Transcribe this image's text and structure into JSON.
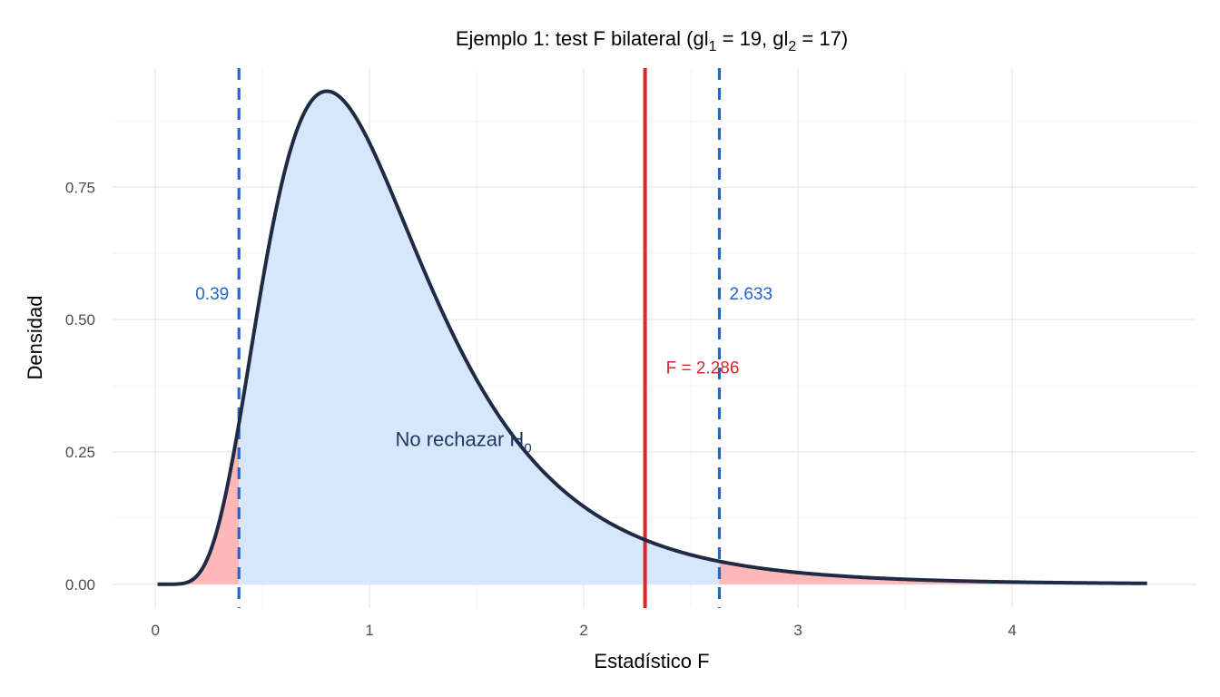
{
  "chart_data": {
    "type": "area",
    "title": {
      "prefix": "Ejemplo 1: test F bilateral (gl",
      "sub1": "1",
      "mid": " = 19, gl",
      "sub2": "2",
      "suffix": " = 17)"
    },
    "xlabel": "Estadístico F",
    "ylabel": "Densidad",
    "xlim": [
      -0.2,
      4.86
    ],
    "ylim": [
      -0.045,
      0.975
    ],
    "x_ticks": [
      0,
      1,
      2,
      3,
      4
    ],
    "y_ticks": [
      0.0,
      0.25,
      0.5,
      0.75
    ],
    "x_tick_labels": [
      "0",
      "1",
      "2",
      "3",
      "4"
    ],
    "y_tick_labels": [
      "0.00",
      "0.25",
      "0.50",
      "0.75"
    ],
    "grid": true,
    "distribution": {
      "name": "F",
      "df1": 19,
      "df2": 17,
      "x_range": [
        0.01,
        4.63
      ]
    },
    "critical_values": {
      "lower": 0.39,
      "upper": 2.633,
      "lower_label": "0.39",
      "upper_label": "2.633"
    },
    "statistic": {
      "value": 2.286,
      "label": "F = 2.286"
    },
    "region_label": {
      "text": "No rechazar H",
      "sub": "0"
    },
    "colors": {
      "curve": "#1f2a44",
      "accept_fill": "#d6e6fb",
      "reject_fill": "#ffb8b8",
      "critical_line": "#2463d1",
      "statistic_line": "#d62728",
      "region_text": "#1f3a5f"
    }
  }
}
